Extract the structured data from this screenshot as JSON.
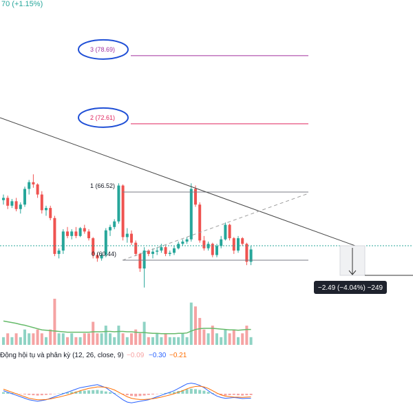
{
  "header": {
    "change_text": "70 (+1.15%)"
  },
  "fib_levels": [
    {
      "label": "3 (78.69)",
      "color": "#a12f9e",
      "level": 78.69,
      "circled": true
    },
    {
      "label": "2 (72.61)",
      "color": "#e0245e",
      "level": 72.61,
      "circled": true
    },
    {
      "label": "1 (66.52)",
      "color": "#787b86",
      "level": 66.52,
      "circled": false
    },
    {
      "label": "0 (60.44)",
      "color": "#787b86",
      "level": 60.44,
      "circled": false
    }
  ],
  "measure_label": "−2.49 (−4.04%) −249",
  "indicator": {
    "title": "Động hội tụ và phân kỳ (12, 26, close, 9)",
    "values": [
      {
        "text": "−0.09",
        "color": "#f7a3a3"
      },
      {
        "text": "−0.30",
        "color": "#2962ff"
      },
      {
        "text": "−0.21",
        "color": "#ff6d00"
      }
    ]
  },
  "colors": {
    "up": "#26a69a",
    "down": "#ef5350",
    "up_volume": "#8fd3c4",
    "down_volume": "#f5a3a3",
    "volume_ma": "#66bb6a",
    "macd_line": "#2962ff",
    "signal_line": "#ff6d00",
    "last_price_line": "#26a69a",
    "ellipse": "#1f4fd6"
  },
  "chart_data": {
    "type": "candlestick",
    "price_range": [
      56,
      84
    ],
    "candles": [
      [
        65.8,
        66.3,
        65.4,
        66.0
      ],
      [
        66.0,
        66.2,
        65.0,
        65.3
      ],
      [
        65.3,
        65.9,
        65.1,
        65.7
      ],
      [
        65.7,
        66.0,
        64.8,
        65.0
      ],
      [
        65.0,
        65.6,
        64.6,
        65.4
      ],
      [
        65.4,
        67.0,
        65.2,
        66.8
      ],
      [
        66.8,
        67.6,
        66.3,
        67.4
      ],
      [
        67.4,
        68.1,
        66.9,
        67.2
      ],
      [
        67.2,
        67.3,
        66.0,
        66.3
      ],
      [
        66.3,
        66.6,
        64.6,
        64.9
      ],
      [
        64.9,
        65.3,
        64.4,
        65.1
      ],
      [
        65.1,
        65.3,
        64.0,
        64.2
      ],
      [
        64.2,
        64.4,
        60.8,
        61.0
      ],
      [
        61.0,
        61.5,
        60.6,
        61.3
      ],
      [
        61.3,
        63.2,
        61.0,
        63.0
      ],
      [
        63.0,
        63.4,
        62.4,
        62.6
      ],
      [
        62.6,
        63.2,
        62.3,
        63.0
      ],
      [
        63.0,
        63.4,
        62.4,
        62.6
      ],
      [
        62.6,
        63.4,
        62.5,
        63.3
      ],
      [
        63.3,
        63.6,
        62.8,
        63.0
      ],
      [
        63.0,
        63.2,
        62.2,
        62.4
      ],
      [
        62.4,
        62.5,
        60.6,
        60.9
      ],
      [
        60.9,
        61.1,
        60.3,
        60.6
      ],
      [
        60.6,
        61.1,
        60.4,
        60.9
      ],
      [
        60.9,
        63.3,
        60.7,
        63.1
      ],
      [
        63.1,
        63.6,
        62.6,
        63.4
      ],
      [
        63.4,
        64.1,
        63.2,
        63.9
      ],
      [
        63.9,
        67.3,
        63.7,
        67.1
      ],
      [
        67.1,
        67.2,
        62.2,
        62.5
      ],
      [
        62.5,
        63.3,
        62.0,
        62.8
      ],
      [
        62.8,
        63.1,
        61.8,
        62.0
      ],
      [
        62.0,
        62.2,
        60.8,
        61.0
      ],
      [
        61.0,
        61.1,
        59.4,
        59.7
      ],
      [
        59.7,
        61.6,
        58.0,
        61.3
      ],
      [
        61.3,
        61.4,
        60.8,
        61.0
      ],
      [
        61.0,
        61.5,
        60.6,
        61.2
      ],
      [
        61.2,
        61.6,
        60.9,
        61.3
      ],
      [
        61.3,
        61.9,
        61.1,
        61.6
      ],
      [
        61.6,
        61.7,
        60.8,
        61.0
      ],
      [
        61.0,
        61.3,
        60.8,
        61.1
      ],
      [
        61.1,
        61.7,
        60.9,
        61.5
      ],
      [
        61.5,
        62.1,
        61.4,
        61.9
      ],
      [
        61.9,
        62.3,
        61.7,
        62.1
      ],
      [
        62.1,
        62.5,
        61.9,
        62.3
      ],
      [
        62.3,
        67.3,
        62.1,
        66.8
      ],
      [
        66.8,
        67.1,
        65.2,
        65.4
      ],
      [
        65.4,
        65.6,
        62.0,
        62.2
      ],
      [
        62.2,
        62.6,
        61.3,
        61.5
      ],
      [
        61.5,
        62.1,
        61.3,
        61.9
      ],
      [
        61.9,
        62.0,
        60.7,
        60.9
      ],
      [
        60.9,
        61.9,
        60.7,
        61.7
      ],
      [
        61.7,
        62.6,
        61.5,
        62.3
      ],
      [
        62.3,
        63.8,
        62.2,
        63.6
      ],
      [
        63.6,
        63.7,
        62.2,
        62.4
      ],
      [
        62.4,
        62.5,
        61.0,
        61.3
      ],
      [
        61.3,
        62.6,
        61.1,
        62.4
      ],
      [
        62.4,
        62.5,
        61.7,
        61.9
      ],
      [
        61.9,
        62.0,
        60.0,
        60.3
      ],
      [
        60.3,
        61.7,
        60.0,
        61.4
      ]
    ],
    "volume_max": 12,
    "volumes": [
      2,
      3,
      2,
      3,
      2,
      4,
      3,
      3,
      4,
      3,
      2,
      4,
      12,
      3,
      3,
      2,
      3,
      2,
      2,
      3,
      3,
      6,
      3,
      3,
      5,
      3,
      2,
      5,
      3,
      2,
      3,
      4,
      3,
      6,
      2,
      2,
      3,
      2,
      3,
      2,
      2,
      2,
      3,
      2,
      11,
      10,
      7,
      4,
      3,
      5,
      3,
      2,
      4,
      3,
      4,
      2,
      3,
      5,
      2
    ],
    "volume_ma": [
      6.2,
      6.0,
      5.8,
      5.6,
      5.3,
      5.1,
      4.8,
      4.5,
      4.2,
      3.9,
      3.8,
      3.7,
      3.6,
      3.5,
      3.4,
      3.3,
      3.3,
      3.3,
      3.3,
      3.3,
      3.3,
      3.4,
      3.4,
      3.4,
      3.5,
      3.5,
      3.4,
      3.5,
      3.5,
      3.4,
      3.4,
      3.3,
      3.2,
      3.2,
      3.1,
      3.0,
      3.0,
      2.9,
      2.9,
      2.9,
      2.9,
      3.0,
      3.0,
      3.1,
      3.6,
      4.0,
      4.2,
      4.3,
      4.3,
      4.3,
      4.2,
      4.1,
      4.0,
      3.9,
      3.9,
      3.8,
      3.9,
      4.0,
      4.0
    ],
    "macd_hist": [
      0.1,
      0.08,
      0.05,
      0.02,
      -0.02,
      -0.05,
      -0.08,
      -0.1,
      -0.12,
      -0.1,
      -0.08,
      -0.05,
      -0.02,
      0.02,
      0.05,
      0.08,
      0.12,
      0.15,
      0.18,
      0.2,
      0.22,
      0.24,
      0.25,
      0.2,
      0.15,
      0.1,
      0.05,
      0.0,
      -0.05,
      -0.1,
      -0.15,
      -0.18,
      -0.15,
      -0.12,
      -0.08,
      -0.05,
      -0.02,
      0.02,
      0.05,
      0.08,
      0.12,
      0.18,
      0.24,
      0.3,
      0.33,
      0.3,
      0.25,
      0.2,
      0.12,
      0.05,
      -0.02,
      -0.08,
      -0.12,
      -0.1,
      -0.08,
      -0.1,
      -0.12,
      -0.1,
      -0.09
    ],
    "macd_line": [
      0.2,
      0.1,
      0.0,
      -0.1,
      -0.2,
      -0.3,
      -0.4,
      -0.45,
      -0.5,
      -0.45,
      -0.4,
      -0.3,
      -0.2,
      -0.1,
      0.0,
      0.1,
      0.2,
      0.3,
      0.4,
      0.45,
      0.5,
      0.55,
      0.6,
      0.5,
      0.4,
      0.2,
      0.0,
      -0.2,
      -0.4,
      -0.55,
      -0.6,
      -0.55,
      -0.5,
      -0.45,
      -0.4,
      -0.3,
      -0.2,
      -0.1,
      0.0,
      0.1,
      0.2,
      0.35,
      0.5,
      0.65,
      0.7,
      0.65,
      0.55,
      0.4,
      0.2,
      0.0,
      -0.15,
      -0.25,
      -0.3,
      -0.28,
      -0.25,
      -0.28,
      -0.32,
      -0.3,
      -0.3
    ],
    "signal_line": [
      0.3,
      0.2,
      0.1,
      0.0,
      -0.1,
      -0.2,
      -0.3,
      -0.35,
      -0.4,
      -0.4,
      -0.38,
      -0.34,
      -0.28,
      -0.22,
      -0.15,
      -0.08,
      0.0,
      0.1,
      0.2,
      0.28,
      0.35,
      0.4,
      0.45,
      0.45,
      0.42,
      0.35,
      0.25,
      0.1,
      -0.05,
      -0.2,
      -0.3,
      -0.35,
      -0.38,
      -0.38,
      -0.36,
      -0.33,
      -0.28,
      -0.22,
      -0.15,
      -0.08,
      0.0,
      0.1,
      0.2,
      0.32,
      0.42,
      0.48,
      0.5,
      0.45,
      0.35,
      0.2,
      0.05,
      -0.08,
      -0.16,
      -0.2,
      -0.22,
      -0.23,
      -0.24,
      -0.22,
      -0.21
    ]
  }
}
